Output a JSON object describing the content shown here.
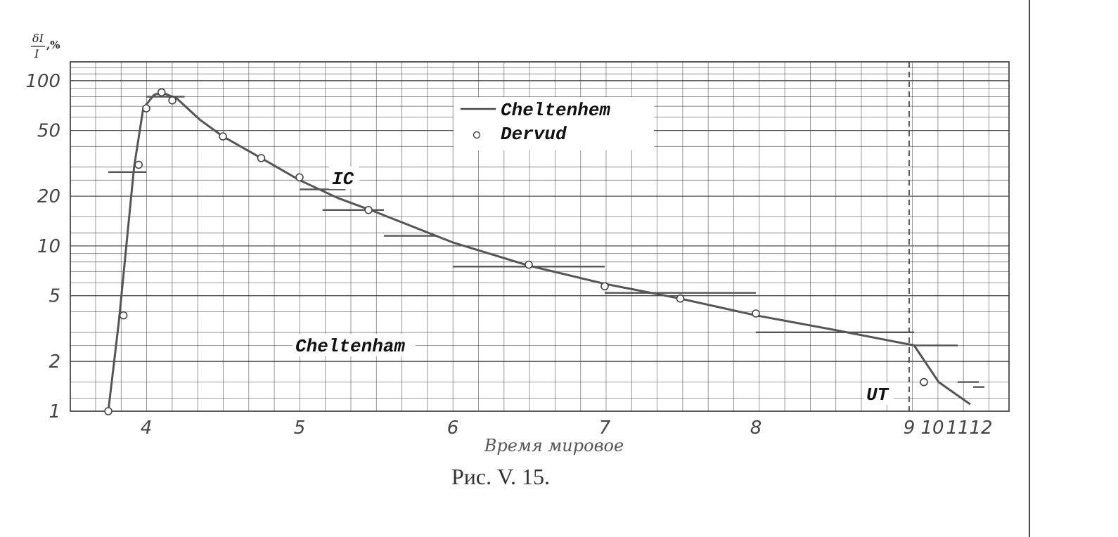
{
  "figure": {
    "caption": "Рис. V. 15."
  },
  "chart_data": {
    "type": "line",
    "ylabel": "δI/I,%",
    "xlabel": "Время мировое",
    "y_scale": "log",
    "ylim": [
      1,
      130
    ],
    "y_ticks": [
      1,
      2,
      5,
      10,
      20,
      50,
      100
    ],
    "y_tick_labels": [
      "1",
      "2",
      "5",
      "10",
      "20",
      "50",
      "100"
    ],
    "x_tick_labels": [
      "4",
      "5",
      "6",
      "7",
      "8",
      "9",
      "10",
      "11",
      "12"
    ],
    "legend_position": "top-center",
    "legend": [
      {
        "label": "Cheltenhem",
        "marker": "line"
      },
      {
        "label": "Dervud",
        "marker": "open-circle"
      }
    ],
    "annotations": [
      {
        "text": "IC",
        "x": 5.3,
        "y": 25
      },
      {
        "text": "Cheltenham",
        "x": 5.5,
        "y": 2.5
      },
      {
        "text": "UT",
        "x": 8.8,
        "y": 1.2
      }
    ],
    "series": [
      {
        "name": "Cheltenhem",
        "kind": "line",
        "x": [
          3.75,
          3.82,
          3.92,
          3.98,
          4.05,
          4.1,
          4.2,
          4.35,
          4.5,
          4.75,
          5.0,
          5.25,
          5.5,
          6.0,
          6.5,
          7.0,
          7.5,
          8.0,
          8.5,
          9.0,
          9.25,
          9.5
        ],
        "y": [
          1.0,
          3.5,
          30,
          68,
          82,
          85,
          78,
          58,
          46,
          34,
          25,
          19.5,
          16,
          10.5,
          7.6,
          5.9,
          4.8,
          3.8,
          3.1,
          2.5,
          1.5,
          1.1
        ]
      },
      {
        "name": "Dervud",
        "kind": "points",
        "x": [
          3.75,
          3.85,
          3.95,
          4.0,
          4.1,
          4.17,
          4.5,
          4.75,
          5.0,
          5.45,
          6.5,
          7.0,
          7.5,
          8.0,
          9.1
        ],
        "y": [
          1.0,
          3.8,
          31,
          68,
          85,
          76,
          46,
          34,
          26,
          16.5,
          7.7,
          5.7,
          4.8,
          3.9,
          1.5
        ]
      },
      {
        "name": "",
        "kind": "step-bars",
        "segments": [
          {
            "x0": 3.75,
            "x1": 4.0,
            "y": 28
          },
          {
            "x0": 4.0,
            "x1": 4.25,
            "y": 80
          },
          {
            "x0": 5.0,
            "x1": 5.3,
            "y": 22
          },
          {
            "x0": 5.15,
            "x1": 5.55,
            "y": 16.5
          },
          {
            "x0": 5.55,
            "x1": 5.9,
            "y": 11.5
          },
          {
            "x0": 6.0,
            "x1": 7.0,
            "y": 7.5
          },
          {
            "x0": 7.0,
            "x1": 8.0,
            "y": 5.2
          },
          {
            "x0": 8.0,
            "x1": 9.0,
            "y": 3.0
          },
          {
            "x0": 9.0,
            "x1": 9.4,
            "y": 2.5
          },
          {
            "x0": 9.4,
            "x1": 9.8,
            "y": 1.5
          },
          {
            "x0": 9.6,
            "x1": 10.0,
            "y": 1.4
          }
        ]
      }
    ]
  }
}
